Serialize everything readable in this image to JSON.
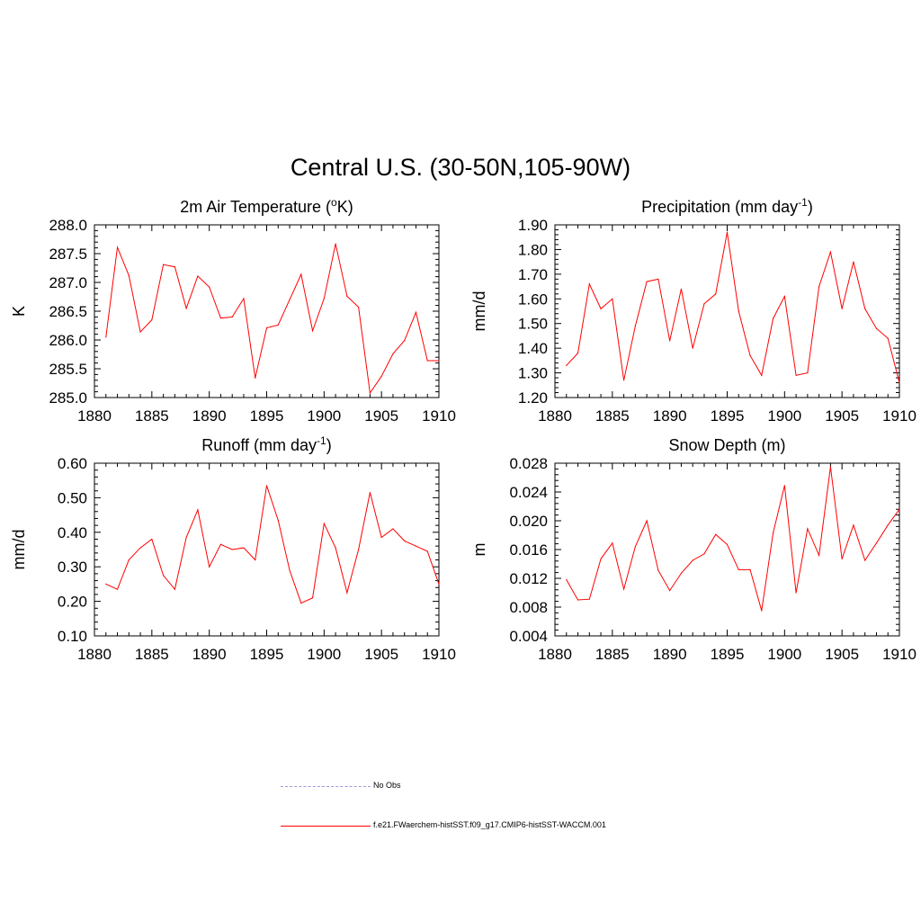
{
  "title": "Central U.S. (30-50N,105-90W)",
  "legend": [
    {
      "label": "No Obs",
      "style": "dashed",
      "color": "#9b9bdc"
    },
    {
      "label": "f.e21.FWaerchem-histSST.f09_g17.CMIP6-histSST-WACCM.001",
      "style": "solid",
      "color": "#ff0000"
    }
  ],
  "chart_data": [
    {
      "type": "line",
      "title": "2m Air Temperature (",
      "title_sup": "o",
      "title_after": "K)",
      "ylabel": "K",
      "xlim": [
        1880,
        1910
      ],
      "ylim": [
        285.0,
        288.0
      ],
      "yticks": [
        "285.0",
        "285.5",
        "286.0",
        "286.5",
        "287.0",
        "287.5",
        "288.0"
      ],
      "xticks": [
        "1880",
        "1885",
        "1890",
        "1895",
        "1900",
        "1905",
        "1910"
      ],
      "x": [
        1881,
        1882,
        1883,
        1884,
        1885,
        1886,
        1887,
        1888,
        1889,
        1890,
        1891,
        1892,
        1893,
        1894,
        1895,
        1896,
        1897,
        1898,
        1899,
        1900,
        1901,
        1902,
        1903,
        1904,
        1905,
        1906,
        1907,
        1908,
        1909,
        1910
      ],
      "series": [
        {
          "color": "#ff0000",
          "values": [
            286.05,
            287.61,
            287.12,
            286.14,
            286.35,
            287.31,
            287.27,
            286.55,
            287.11,
            286.92,
            286.38,
            286.4,
            286.72,
            285.34,
            286.21,
            286.26,
            286.7,
            287.14,
            286.16,
            286.72,
            287.67,
            286.76,
            286.57,
            285.08,
            285.37,
            285.76,
            285.99,
            286.48,
            285.64,
            285.64
          ]
        }
      ]
    },
    {
      "type": "line",
      "title": "Precipitation (mm day",
      "title_sup": "-1",
      "title_after": ")",
      "ylabel": "mm/d",
      "xlim": [
        1880,
        1910
      ],
      "ylim": [
        1.2,
        1.9
      ],
      "yticks": [
        "1.20",
        "1.30",
        "1.40",
        "1.50",
        "1.60",
        "1.70",
        "1.80",
        "1.90"
      ],
      "xticks": [
        "1880",
        "1885",
        "1890",
        "1895",
        "1900",
        "1905",
        "1910"
      ],
      "x": [
        1881,
        1882,
        1883,
        1884,
        1885,
        1886,
        1887,
        1888,
        1889,
        1890,
        1891,
        1892,
        1893,
        1894,
        1895,
        1896,
        1897,
        1898,
        1899,
        1900,
        1901,
        1902,
        1903,
        1904,
        1905,
        1906,
        1907,
        1908,
        1909,
        1910
      ],
      "series": [
        {
          "color": "#ff0000",
          "values": [
            1.33,
            1.38,
            1.66,
            1.56,
            1.6,
            1.27,
            1.49,
            1.67,
            1.68,
            1.43,
            1.64,
            1.4,
            1.58,
            1.62,
            1.87,
            1.55,
            1.37,
            1.29,
            1.52,
            1.61,
            1.29,
            1.3,
            1.65,
            1.79,
            1.56,
            1.75,
            1.56,
            1.48,
            1.44,
            1.26
          ]
        }
      ]
    },
    {
      "type": "line",
      "title": "Runoff (mm day",
      "title_sup": "-1",
      "title_after": ")",
      "ylabel": "mm/d",
      "xlim": [
        1880,
        1910
      ],
      "ylim": [
        0.1,
        0.6
      ],
      "yticks": [
        "0.10",
        "0.20",
        "0.30",
        "0.40",
        "0.50",
        "0.60"
      ],
      "xticks": [
        "1880",
        "1885",
        "1890",
        "1895",
        "1900",
        "1905",
        "1910"
      ],
      "x": [
        1881,
        1882,
        1883,
        1884,
        1885,
        1886,
        1887,
        1888,
        1889,
        1890,
        1891,
        1892,
        1893,
        1894,
        1895,
        1896,
        1897,
        1898,
        1899,
        1900,
        1901,
        1902,
        1903,
        1904,
        1905,
        1906,
        1907,
        1908,
        1909,
        1910
      ],
      "series": [
        {
          "color": "#ff0000",
          "values": [
            0.25,
            0.235,
            0.32,
            0.355,
            0.38,
            0.275,
            0.235,
            0.385,
            0.465,
            0.3,
            0.365,
            0.35,
            0.355,
            0.32,
            0.535,
            0.435,
            0.29,
            0.195,
            0.21,
            0.425,
            0.355,
            0.225,
            0.35,
            0.515,
            0.385,
            0.41,
            0.375,
            0.36,
            0.345,
            0.25
          ]
        }
      ]
    },
    {
      "type": "line",
      "title": "Snow Depth (m)",
      "title_sup": "",
      "title_after": "",
      "ylabel": "m",
      "xlim": [
        1880,
        1910
      ],
      "ylim": [
        0.004,
        0.028
      ],
      "yticks": [
        "0.004",
        "0.008",
        "0.012",
        "0.016",
        "0.020",
        "0.024",
        "0.028"
      ],
      "xticks": [
        "1880",
        "1885",
        "1890",
        "1895",
        "1900",
        "1905",
        "1910"
      ],
      "x": [
        1881,
        1882,
        1883,
        1884,
        1885,
        1886,
        1887,
        1888,
        1889,
        1890,
        1891,
        1892,
        1893,
        1894,
        1895,
        1896,
        1897,
        1898,
        1899,
        1900,
        1901,
        1902,
        1903,
        1904,
        1905,
        1906,
        1907,
        1908,
        1909,
        1910
      ],
      "series": [
        {
          "color": "#ff0000",
          "values": [
            0.0118,
            0.009,
            0.0091,
            0.0147,
            0.0169,
            0.0105,
            0.0164,
            0.02,
            0.0131,
            0.0103,
            0.0127,
            0.0145,
            0.0154,
            0.0181,
            0.0167,
            0.0132,
            0.0132,
            0.0075,
            0.0183,
            0.0249,
            0.01,
            0.0189,
            0.0152,
            0.0275,
            0.0147,
            0.0194,
            0.0145,
            0.0169,
            0.0194,
            0.0216
          ]
        }
      ]
    }
  ]
}
